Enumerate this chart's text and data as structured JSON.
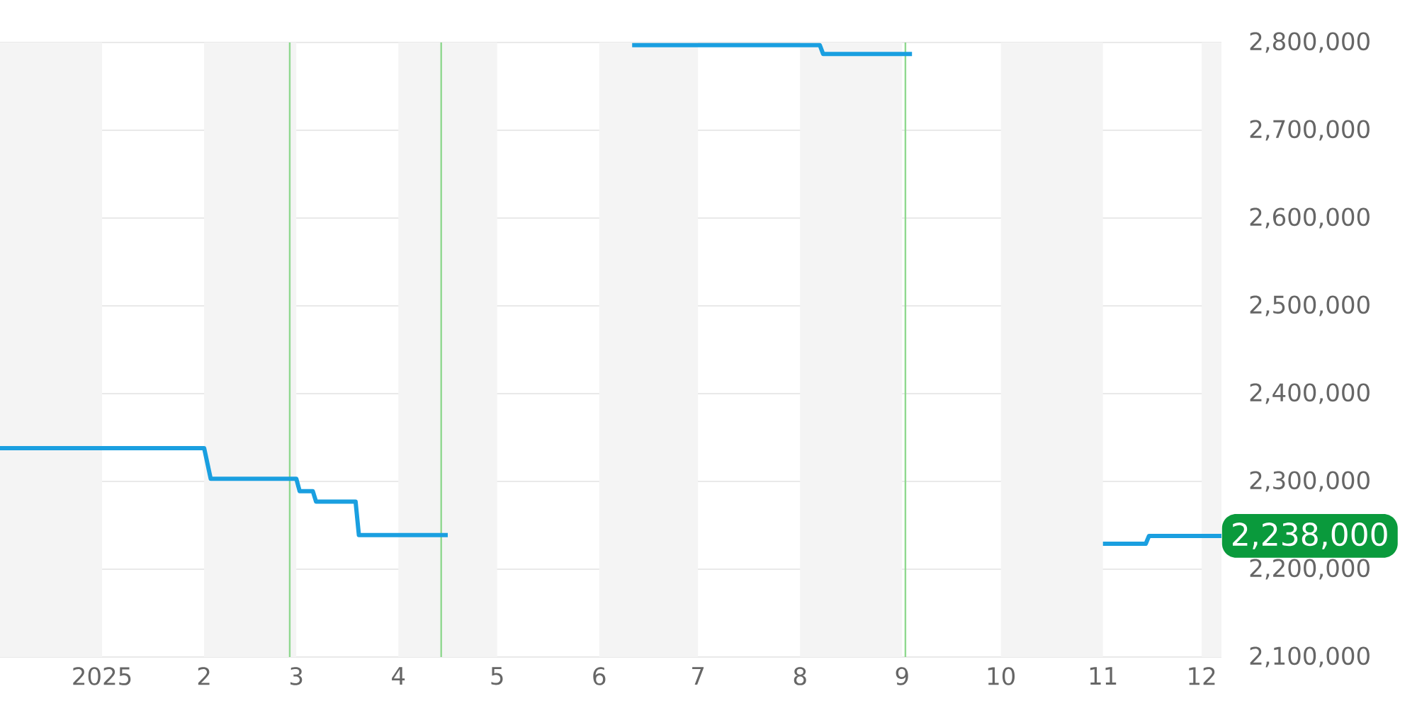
{
  "chart_data": {
    "type": "line",
    "series": [
      {
        "color": "#1a9fe0",
        "x": [
          "2024-12-01",
          "2025-02-01",
          "2025-02-03",
          "2025-03-01",
          "2025-03-02",
          "2025-03-06",
          "2025-03-07",
          "2025-03-19",
          "2025-03-20",
          "2025-04-16",
          "2025-05-01",
          "2025-06-11",
          "2025-08-07",
          "2025-08-08",
          "2025-09-04",
          "2025-10-01",
          "2025-11-01",
          "2025-11-14",
          "2025-11-15",
          "2025-12-07"
        ],
        "values": [
          2338000,
          2338000,
          2303000,
          2303000,
          2289000,
          2289000,
          2277000,
          2277000,
          2239000,
          2239000,
          null,
          2797000,
          2797000,
          2787000,
          2787000,
          null,
          2229000,
          2229000,
          2238000,
          2238000
        ]
      }
    ],
    "xlim": [
      "2024-12-01",
      "2025-12-07"
    ],
    "xticks": [
      {
        "value": "2025-01-01",
        "label": "2025"
      },
      {
        "value": "2025-02-01",
        "label": "2"
      },
      {
        "value": "2025-03-01",
        "label": "3"
      },
      {
        "value": "2025-04-01",
        "label": "4"
      },
      {
        "value": "2025-05-01",
        "label": "5"
      },
      {
        "value": "2025-06-01",
        "label": "6"
      },
      {
        "value": "2025-07-01",
        "label": "7"
      },
      {
        "value": "2025-08-01",
        "label": "8"
      },
      {
        "value": "2025-09-01",
        "label": "9"
      },
      {
        "value": "2025-10-01",
        "label": "10"
      },
      {
        "value": "2025-11-01",
        "label": "11"
      },
      {
        "value": "2025-12-01",
        "label": "12"
      }
    ],
    "ylim": [
      2100000,
      2800000
    ],
    "yticks": [
      {
        "value": 2100000,
        "label": "2,100,000"
      },
      {
        "value": 2200000,
        "label": "2,200,000"
      },
      {
        "value": 2300000,
        "label": "2,300,000"
      },
      {
        "value": 2400000,
        "label": "2,400,000"
      },
      {
        "value": 2500000,
        "label": "2,500,000"
      },
      {
        "value": 2600000,
        "label": "2,600,000"
      },
      {
        "value": 2700000,
        "label": "2,700,000"
      },
      {
        "value": 2800000,
        "label": "2,800,000"
      }
    ],
    "grid": "y",
    "marker": "none",
    "bands": [
      {
        "axis": "x",
        "from": "2024-12-01",
        "to": "2025-01-01",
        "color": "#f4f4f4"
      },
      {
        "axis": "x",
        "from": "2025-02-01",
        "to": "2025-03-01",
        "color": "#f4f4f4"
      },
      {
        "axis": "x",
        "from": "2025-04-01",
        "to": "2025-05-01",
        "color": "#f4f4f4"
      },
      {
        "axis": "x",
        "from": "2025-06-01",
        "to": "2025-07-01",
        "color": "#f4f4f4"
      },
      {
        "axis": "x",
        "from": "2025-08-01",
        "to": "2025-09-01",
        "color": "#f4f4f4"
      },
      {
        "axis": "x",
        "from": "2025-10-01",
        "to": "2025-11-01",
        "color": "#f4f4f4"
      },
      {
        "axis": "x",
        "from": "2025-12-01",
        "to": "2025-12-07",
        "color": "#f4f4f4"
      }
    ],
    "ref_lines": [
      {
        "axis": "x",
        "value": "2025-02-27",
        "color": "#8fd88f"
      },
      {
        "axis": "x",
        "value": "2025-04-14",
        "color": "#8fd88f"
      },
      {
        "axis": "x",
        "value": "2025-09-02",
        "color": "#8fd88f"
      }
    ],
    "annotations": [
      {
        "text": "2,238,000",
        "x": "2025-12-07",
        "y": 2238000
      }
    ]
  }
}
